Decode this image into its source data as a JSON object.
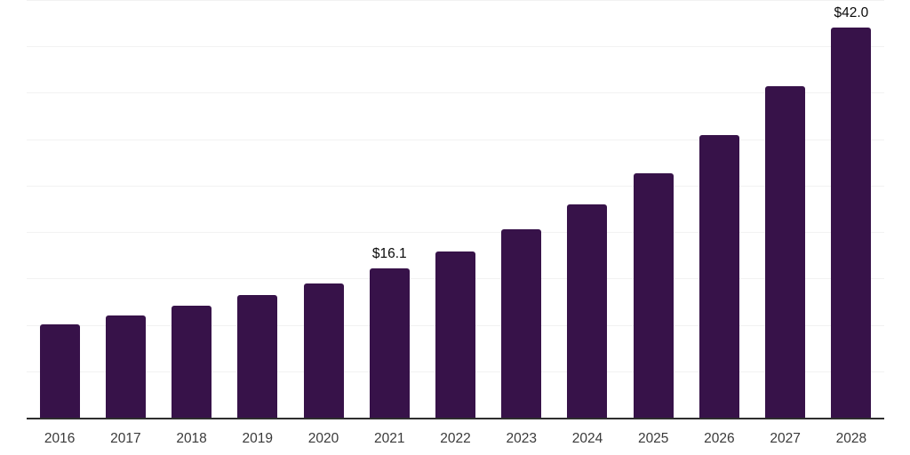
{
  "chart_data": {
    "type": "bar",
    "title": "",
    "xlabel": "",
    "ylabel": "",
    "categories": [
      "2016",
      "2017",
      "2018",
      "2019",
      "2020",
      "2021",
      "2022",
      "2023",
      "2024",
      "2025",
      "2026",
      "2027",
      "2028"
    ],
    "values": [
      10.1,
      11.0,
      12.1,
      13.2,
      14.5,
      16.1,
      17.9,
      20.3,
      23.0,
      26.3,
      30.4,
      35.7,
      42.0
    ],
    "bar_labels": [
      "",
      "",
      "",
      "",
      "",
      "$16.1",
      "",
      "",
      "",
      "",
      "",
      "",
      "$42.0"
    ],
    "ylim": [
      0,
      45
    ],
    "gridline_step": 5,
    "grid": "horizontal-only",
    "y_axis_tick_labels_visible": false,
    "legend": "none"
  },
  "colors": {
    "background": "#ffffff",
    "bar": "#371249",
    "gridline": "#f2f2f2",
    "axis_line": "#2e2e2e",
    "tick_label": "#3a3a3a",
    "value_label": "#0a0a0a"
  }
}
